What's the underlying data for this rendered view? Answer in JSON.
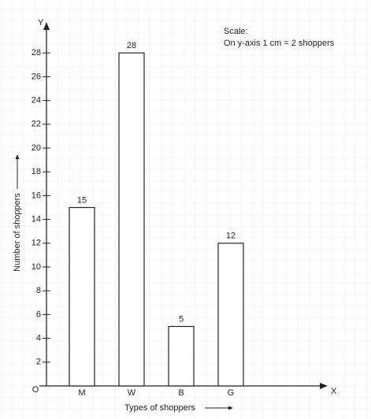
{
  "chart_data": {
    "type": "bar",
    "categories": [
      "M",
      "W",
      "B",
      "G"
    ],
    "values": [
      15,
      28,
      5,
      12
    ],
    "color": "#ffffff",
    "ylim": [
      0,
      30
    ],
    "yticks": [
      2,
      4,
      6,
      8,
      10,
      12,
      14,
      16,
      18,
      20,
      22,
      24,
      26,
      28
    ],
    "x_label": "Types of shoppers",
    "y_label": "Number of shoppers",
    "x_axis_letter": "X",
    "y_axis_letter": "Y",
    "origin_label": "O",
    "scale_title": "Scale:",
    "scale_text": "On y-axis 1 cm = 2 shoppers"
  }
}
